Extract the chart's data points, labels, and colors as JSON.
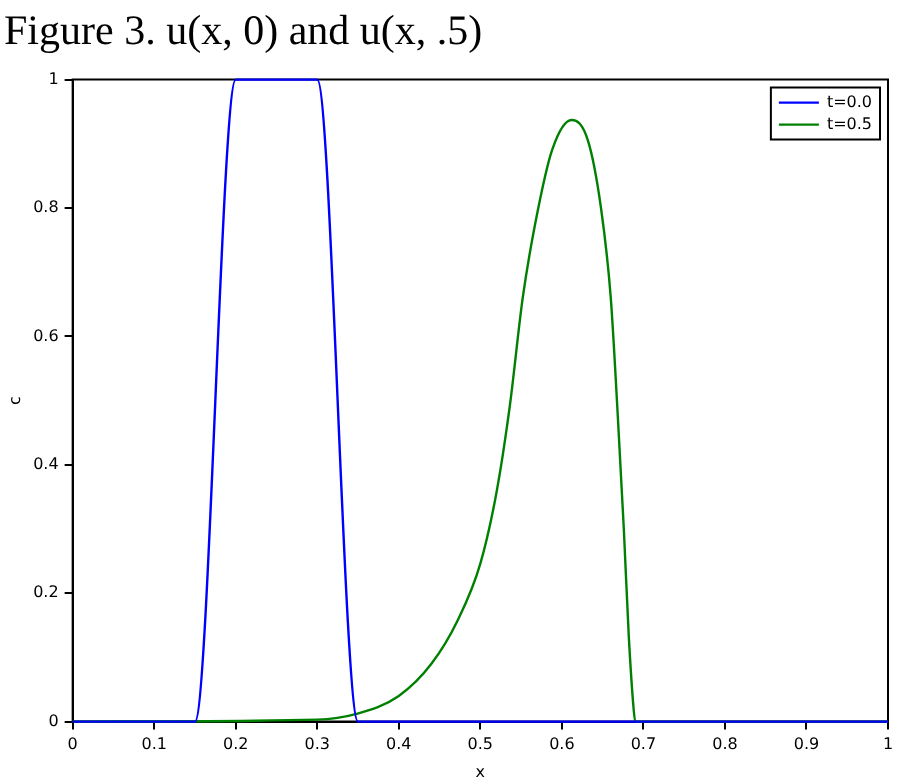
{
  "chart_data": {
    "type": "line",
    "title": "Figure 3. u(x, 0) and u(x, .5)",
    "xlabel": "x",
    "ylabel": "c",
    "xlim": [
      0,
      1
    ],
    "xticks": [
      0,
      0.1,
      0.2,
      0.3,
      0.4,
      0.5,
      0.6,
      0.7,
      0.8,
      0.9,
      1
    ],
    "ylim": [
      0,
      1
    ],
    "yticks": [
      0,
      0.2,
      0.4,
      0.6,
      0.8,
      1
    ],
    "grid": false,
    "legend": "top right",
    "marker": "none",
    "line_style": "solid",
    "series": [
      {
        "name": "t=0.0",
        "color": "#0000ff",
        "x": [
          0,
          0.15,
          0.2,
          0.3,
          0.35,
          1
        ],
        "values": [
          0,
          0,
          1,
          1,
          0,
          0
        ]
      },
      {
        "name": "t=0.5",
        "color": "#008000",
        "x": [
          0,
          0.3,
          0.348,
          0.4,
          0.44,
          0.472,
          0.5,
          0.52,
          0.536,
          0.552,
          0.568,
          0.588,
          0.612,
          0.632,
          0.648,
          0.66,
          0.668,
          0.676,
          0.682,
          0.688,
          0.69,
          1
        ],
        "values": [
          0,
          0.003,
          0.012,
          0.04,
          0.09,
          0.157,
          0.246,
          0.358,
          0.49,
          0.66,
          0.78,
          0.89,
          0.937,
          0.905,
          0.8,
          0.66,
          0.49,
          0.3,
          0.135,
          0.02,
          0,
          0
        ]
      }
    ]
  }
}
